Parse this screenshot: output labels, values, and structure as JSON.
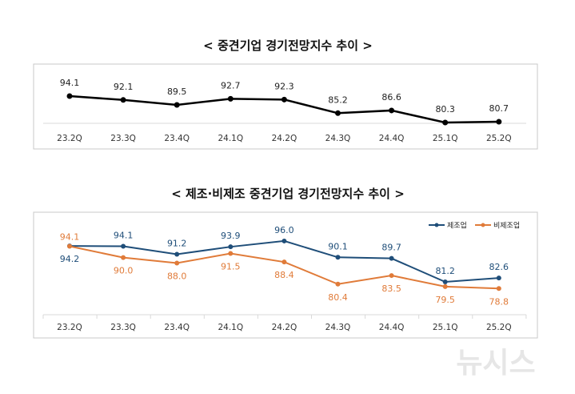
{
  "chart_data": [
    {
      "type": "line",
      "title": "< 중견기업  경기전망지수  추이 >",
      "categories": [
        "23.2Q",
        "23.3Q",
        "23.4Q",
        "24.1Q",
        "24.2Q",
        "24.3Q",
        "24.4Q",
        "25.1Q",
        "25.2Q"
      ],
      "series": [
        {
          "values": [
            94.1,
            92.1,
            89.5,
            92.7,
            92.3,
            85.2,
            86.6,
            80.3,
            80.7
          ],
          "color": "#000000"
        }
      ],
      "grid": false,
      "data_labels": true
    },
    {
      "type": "line",
      "title": "< 제조·비제조  중견기업  경기전망지수  추이 >",
      "categories": [
        "23.2Q",
        "23.3Q",
        "23.4Q",
        "24.1Q",
        "24.2Q",
        "24.3Q",
        "24.4Q",
        "25.1Q",
        "25.2Q"
      ],
      "series": [
        {
          "name": "제조업",
          "values": [
            94.2,
            94.1,
            91.2,
            93.9,
            96.0,
            90.1,
            89.7,
            81.2,
            82.6
          ],
          "color": "#1f4e79"
        },
        {
          "name": "비제조업",
          "values": [
            94.1,
            90.0,
            88.0,
            91.5,
            88.4,
            80.4,
            83.5,
            79.5,
            78.8
          ],
          "color": "#e07b39"
        }
      ],
      "legend": "top-right",
      "grid": false,
      "data_labels": true
    }
  ],
  "watermark": "뉴시스"
}
